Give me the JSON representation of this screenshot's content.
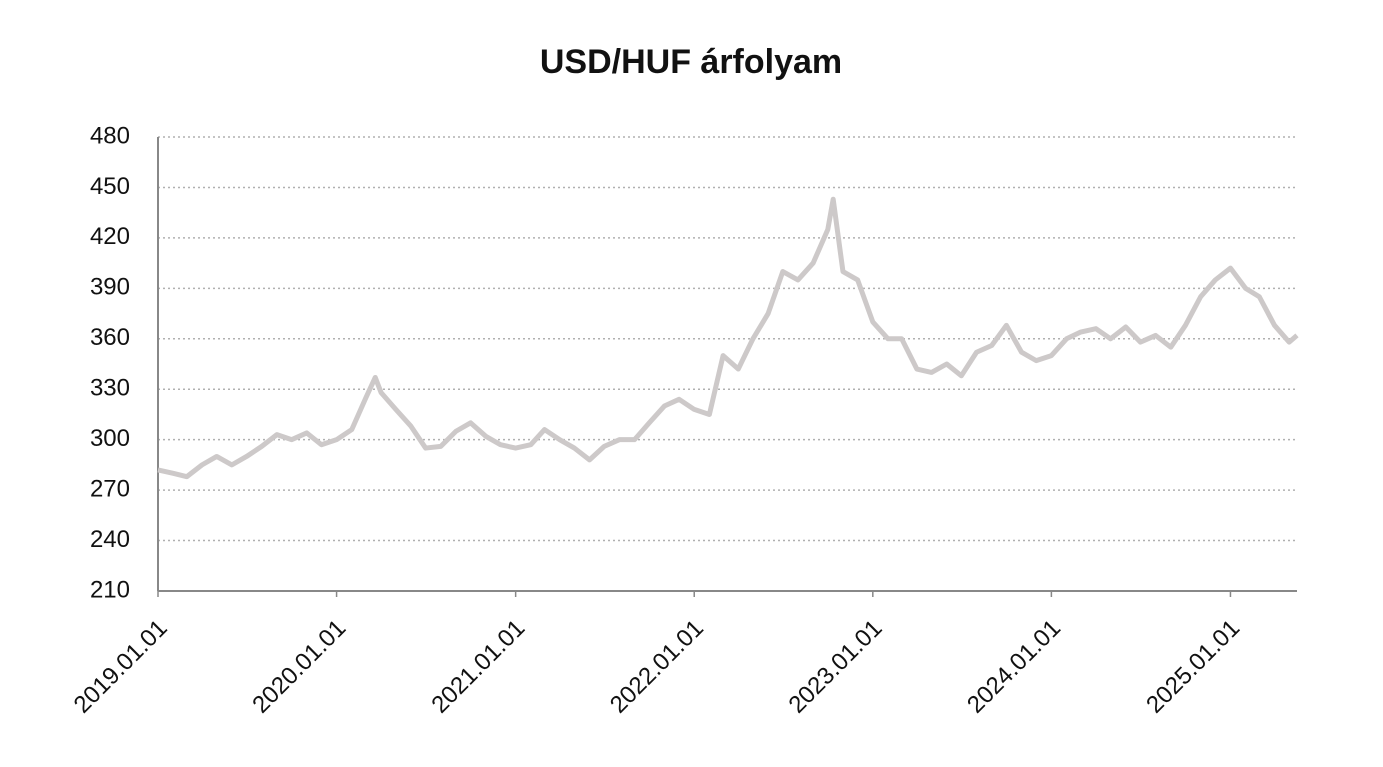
{
  "chart_data": {
    "type": "line",
    "title": "USD/HUF árfolyam",
    "x": [
      "2019.01.01",
      "2019.02.01",
      "2019.03.01",
      "2019.04.01",
      "2019.05.01",
      "2019.06.01",
      "2019.07.01",
      "2019.08.01",
      "2019.09.01",
      "2019.10.01",
      "2019.11.01",
      "2019.12.01",
      "2020.01.01",
      "2020.02.01",
      "2020.03.01",
      "2020.03.20",
      "2020.04.01",
      "2020.05.01",
      "2020.06.01",
      "2020.07.01",
      "2020.08.01",
      "2020.09.01",
      "2020.10.01",
      "2020.11.01",
      "2020.12.01",
      "2021.01.01",
      "2021.02.01",
      "2021.03.01",
      "2021.04.01",
      "2021.05.01",
      "2021.06.01",
      "2021.07.01",
      "2021.08.01",
      "2021.09.01",
      "2021.10.01",
      "2021.11.01",
      "2021.12.01",
      "2022.01.01",
      "2022.02.01",
      "2022.03.01",
      "2022.04.01",
      "2022.05.01",
      "2022.06.01",
      "2022.07.01",
      "2022.08.01",
      "2022.09.01",
      "2022.10.01",
      "2022.10.12",
      "2022.11.01",
      "2022.12.01",
      "2023.01.01",
      "2023.02.01",
      "2023.03.01",
      "2023.04.01",
      "2023.05.01",
      "2023.06.01",
      "2023.07.01",
      "2023.08.01",
      "2023.09.01",
      "2023.10.01",
      "2023.11.01",
      "2023.12.01",
      "2024.01.01",
      "2024.02.01",
      "2024.03.01",
      "2024.04.01",
      "2024.05.01",
      "2024.06.01",
      "2024.07.01",
      "2024.08.01",
      "2024.09.01",
      "2024.10.01",
      "2024.11.01",
      "2024.12.01",
      "2025.01.01",
      "2025.02.01",
      "2025.03.01",
      "2025.04.01",
      "2025.05.01",
      "2025.05.17"
    ],
    "series": [
      {
        "name": "USD/HUF",
        "color": "#cdc9c9",
        "values": [
          282,
          280,
          278,
          285,
          290,
          285,
          290,
          296,
          303,
          300,
          304,
          297,
          300,
          306,
          325,
          337,
          328,
          318,
          308,
          295,
          296,
          305,
          310,
          302,
          297,
          295,
          297,
          306,
          300,
          295,
          288,
          296,
          300,
          300,
          310,
          320,
          324,
          318,
          315,
          350,
          342,
          360,
          375,
          400,
          395,
          405,
          425,
          443,
          400,
          395,
          370,
          360,
          360,
          342,
          340,
          345,
          338,
          352,
          356,
          368,
          352,
          347,
          350,
          360,
          364,
          366,
          360,
          367,
          358,
          362,
          355,
          368,
          385,
          395,
          402,
          390,
          385,
          368,
          358,
          362
        ]
      }
    ],
    "xlim": [
      "2019.01.01",
      "2025.05.17"
    ],
    "xticks": [
      "2019.01.01",
      "2020.01.01",
      "2021.01.01",
      "2022.01.01",
      "2023.01.01",
      "2024.01.01",
      "2025.01.01"
    ],
    "ylim": [
      210,
      480
    ],
    "yticks": [
      210,
      240,
      270,
      300,
      330,
      360,
      390,
      420,
      450,
      480
    ],
    "grid": true
  }
}
